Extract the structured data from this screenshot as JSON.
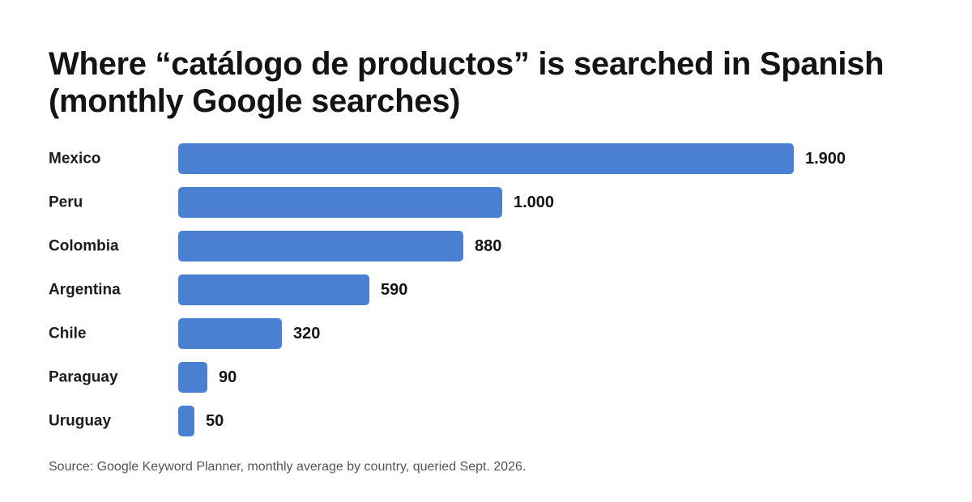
{
  "title_line1": "Where “catálogo de productos” is searched in Spanish",
  "title_line2": "(monthly Google searches)",
  "source": "Source: Google Keyword Planner, monthly average by country, queried Sept. 2026.",
  "colors": {
    "bar": "#4a7fd2"
  },
  "chart_data": {
    "type": "bar",
    "orientation": "horizontal",
    "title": "Where “catálogo de productos” is searched in Spanish (monthly Google searches)",
    "categories": [
      "Mexico",
      "Peru",
      "Colombia",
      "Argentina",
      "Chile",
      "Paraguay",
      "Uruguay"
    ],
    "values": [
      1900,
      1000,
      880,
      590,
      320,
      90,
      50
    ],
    "value_labels": [
      "1.900",
      "1.000",
      "880",
      "590",
      "320",
      "90",
      "50"
    ],
    "xlabel": "",
    "ylabel": "",
    "grid": false,
    "legend": "none"
  }
}
